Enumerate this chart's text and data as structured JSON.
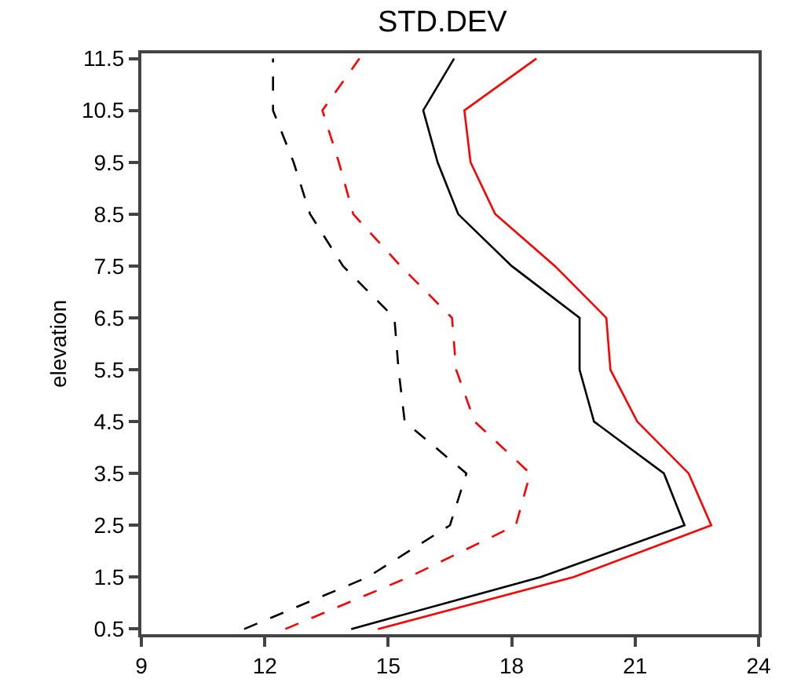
{
  "chart_data": {
    "type": "line",
    "title": "STD.DEV",
    "ylabel": "elevation",
    "xlim": [
      9,
      24
    ],
    "xticks": [
      9,
      12,
      15,
      18,
      21,
      24
    ],
    "ylim": [
      0.4,
      11.6
    ],
    "yticks": [
      0.5,
      1.5,
      2.5,
      3.5,
      4.5,
      5.5,
      6.5,
      7.5,
      8.5,
      9.5,
      10.5,
      11.5
    ],
    "grid": false,
    "marker": "none",
    "series": [
      {
        "color": "#000000",
        "line_style": "dashed",
        "x": [
          11.5,
          14.5,
          16.5,
          16.9,
          15.4,
          15.25,
          15.15,
          13.9,
          13.1,
          12.7,
          12.2,
          12.2
        ],
        "values": [
          0.5,
          1.5,
          2.5,
          3.5,
          4.5,
          5.5,
          6.5,
          7.5,
          8.5,
          9.5,
          10.5,
          11.5
        ]
      },
      {
        "color": "#ff0000",
        "line_style": "dashed",
        "x": [
          12.5,
          15.5,
          18.1,
          18.45,
          17.1,
          16.65,
          16.55,
          15.3,
          14.15,
          13.8,
          13.4,
          14.3
        ],
        "values": [
          0.5,
          1.5,
          2.5,
          3.5,
          4.5,
          5.5,
          6.5,
          7.5,
          8.5,
          9.5,
          10.5,
          11.5
        ]
      },
      {
        "color": "#000000",
        "line_style": "solid",
        "x": [
          14.1,
          18.7,
          22.2,
          21.7,
          20.0,
          19.65,
          19.65,
          18.0,
          16.7,
          16.2,
          15.85,
          16.6
        ],
        "values": [
          0.5,
          1.5,
          2.5,
          3.5,
          4.5,
          5.5,
          6.5,
          7.5,
          8.5,
          9.5,
          10.5,
          11.5
        ]
      },
      {
        "color": "#ff0000",
        "line_style": "solid",
        "x": [
          14.75,
          19.5,
          22.85,
          22.3,
          21.05,
          20.4,
          20.3,
          19.05,
          17.6,
          17.0,
          16.85,
          18.6
        ],
        "values": [
          0.5,
          1.5,
          2.5,
          3.5,
          4.5,
          5.5,
          6.5,
          7.5,
          8.5,
          9.5,
          10.5,
          11.5
        ]
      }
    ]
  }
}
